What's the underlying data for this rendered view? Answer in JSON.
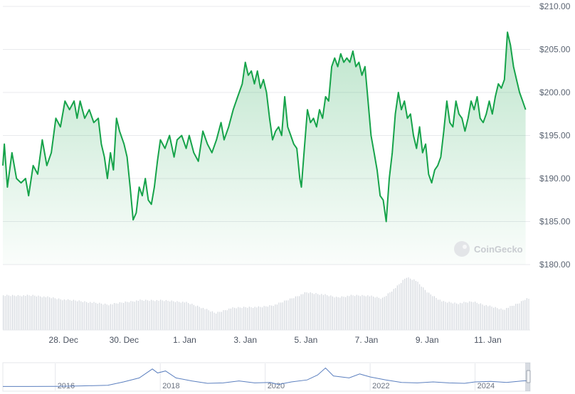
{
  "chart_data": {
    "type": "line",
    "title": "",
    "xlabel": "",
    "ylabel": "",
    "ylim": [
      180,
      210
    ],
    "yticks": [
      "$180.00",
      "$185.00",
      "$190.00",
      "$195.00",
      "$200.00",
      "$205.00",
      "$210.00"
    ],
    "xticks": [
      "28. Dec",
      "30. Dec",
      "1. Jan",
      "3. Jan",
      "5. Jan",
      "7. Jan",
      "9. Jan",
      "11. Jan"
    ],
    "x_range_days": [
      0,
      17.4
    ],
    "xtick_days": [
      2,
      4,
      6,
      8,
      10,
      12,
      14,
      16
    ],
    "grid": true,
    "line_color": "#16a34a",
    "fill_color": "#16a34a",
    "watermark": "CoinGecko",
    "price_points": [
      [
        0.0,
        191.5
      ],
      [
        0.05,
        194.0
      ],
      [
        0.15,
        189.0
      ],
      [
        0.3,
        193.0
      ],
      [
        0.45,
        190.0
      ],
      [
        0.6,
        189.5
      ],
      [
        0.75,
        190.0
      ],
      [
        0.85,
        188.0
      ],
      [
        1.0,
        191.5
      ],
      [
        1.15,
        190.5
      ],
      [
        1.3,
        194.5
      ],
      [
        1.45,
        191.5
      ],
      [
        1.6,
        193.0
      ],
      [
        1.75,
        197.0
      ],
      [
        1.9,
        196.0
      ],
      [
        2.05,
        199.0
      ],
      [
        2.2,
        198.0
      ],
      [
        2.35,
        199.0
      ],
      [
        2.45,
        197.0
      ],
      [
        2.55,
        199.0
      ],
      [
        2.7,
        197.0
      ],
      [
        2.85,
        198.0
      ],
      [
        3.0,
        196.5
      ],
      [
        3.15,
        197.0
      ],
      [
        3.25,
        194.0
      ],
      [
        3.35,
        192.5
      ],
      [
        3.45,
        190.0
      ],
      [
        3.55,
        193.0
      ],
      [
        3.65,
        191.0
      ],
      [
        3.75,
        197.0
      ],
      [
        3.85,
        195.5
      ],
      [
        4.0,
        194.0
      ],
      [
        4.1,
        192.5
      ],
      [
        4.2,
        189.0
      ],
      [
        4.3,
        185.2
      ],
      [
        4.4,
        186.0
      ],
      [
        4.5,
        189.0
      ],
      [
        4.6,
        188.0
      ],
      [
        4.7,
        190.0
      ],
      [
        4.8,
        187.5
      ],
      [
        4.9,
        187.0
      ],
      [
        5.0,
        189.0
      ],
      [
        5.1,
        192.0
      ],
      [
        5.2,
        194.5
      ],
      [
        5.35,
        193.5
      ],
      [
        5.5,
        195.0
      ],
      [
        5.65,
        192.5
      ],
      [
        5.75,
        194.5
      ],
      [
        5.9,
        195.0
      ],
      [
        6.05,
        193.5
      ],
      [
        6.15,
        195.0
      ],
      [
        6.3,
        193.0
      ],
      [
        6.45,
        192.0
      ],
      [
        6.6,
        195.5
      ],
      [
        6.75,
        194.0
      ],
      [
        6.9,
        193.0
      ],
      [
        7.05,
        194.5
      ],
      [
        7.2,
        196.5
      ],
      [
        7.3,
        194.5
      ],
      [
        7.45,
        196.0
      ],
      [
        7.6,
        198.0
      ],
      [
        7.75,
        199.5
      ],
      [
        7.9,
        201.0
      ],
      [
        8.0,
        203.5
      ],
      [
        8.1,
        202.0
      ],
      [
        8.2,
        202.5
      ],
      [
        8.3,
        201.0
      ],
      [
        8.4,
        202.5
      ],
      [
        8.5,
        200.5
      ],
      [
        8.6,
        201.5
      ],
      [
        8.7,
        200.0
      ],
      [
        8.8,
        197.0
      ],
      [
        8.9,
        194.5
      ],
      [
        9.0,
        195.5
      ],
      [
        9.1,
        196.0
      ],
      [
        9.2,
        195.0
      ],
      [
        9.3,
        199.5
      ],
      [
        9.4,
        196.0
      ],
      [
        9.5,
        195.0
      ],
      [
        9.6,
        194.0
      ],
      [
        9.7,
        193.5
      ],
      [
        9.8,
        190.0
      ],
      [
        9.85,
        189.0
      ],
      [
        9.95,
        193.5
      ],
      [
        10.05,
        198.0
      ],
      [
        10.15,
        196.5
      ],
      [
        10.25,
        197.0
      ],
      [
        10.35,
        196.0
      ],
      [
        10.45,
        198.0
      ],
      [
        10.55,
        197.0
      ],
      [
        10.65,
        199.5
      ],
      [
        10.75,
        199.0
      ],
      [
        10.85,
        203.0
      ],
      [
        10.95,
        204.0
      ],
      [
        11.05,
        203.0
      ],
      [
        11.15,
        204.5
      ],
      [
        11.25,
        203.5
      ],
      [
        11.35,
        204.0
      ],
      [
        11.45,
        203.5
      ],
      [
        11.55,
        204.8
      ],
      [
        11.65,
        203.0
      ],
      [
        11.75,
        203.5
      ],
      [
        11.85,
        202.0
      ],
      [
        11.95,
        203.0
      ],
      [
        12.05,
        199.0
      ],
      [
        12.15,
        195.0
      ],
      [
        12.25,
        193.0
      ],
      [
        12.35,
        191.0
      ],
      [
        12.45,
        188.0
      ],
      [
        12.55,
        187.5
      ],
      [
        12.65,
        185.0
      ],
      [
        12.75,
        190.0
      ],
      [
        12.85,
        193.0
      ],
      [
        12.95,
        197.5
      ],
      [
        13.05,
        200.0
      ],
      [
        13.15,
        198.0
      ],
      [
        13.25,
        199.0
      ],
      [
        13.35,
        197.0
      ],
      [
        13.45,
        197.5
      ],
      [
        13.55,
        195.0
      ],
      [
        13.65,
        193.5
      ],
      [
        13.75,
        196.0
      ],
      [
        13.85,
        193.0
      ],
      [
        13.95,
        194.0
      ],
      [
        14.05,
        190.5
      ],
      [
        14.15,
        189.5
      ],
      [
        14.25,
        191.0
      ],
      [
        14.35,
        191.5
      ],
      [
        14.45,
        192.5
      ],
      [
        14.55,
        195.5
      ],
      [
        14.65,
        199.0
      ],
      [
        14.75,
        196.5
      ],
      [
        14.85,
        196.0
      ],
      [
        14.95,
        199.0
      ],
      [
        15.05,
        197.5
      ],
      [
        15.15,
        197.0
      ],
      [
        15.25,
        195.5
      ],
      [
        15.35,
        197.0
      ],
      [
        15.45,
        199.0
      ],
      [
        15.55,
        198.0
      ],
      [
        15.65,
        199.5
      ],
      [
        15.75,
        197.0
      ],
      [
        15.85,
        196.5
      ],
      [
        15.95,
        197.5
      ],
      [
        16.05,
        199.0
      ],
      [
        16.15,
        197.5
      ],
      [
        16.25,
        199.5
      ],
      [
        16.35,
        201.0
      ],
      [
        16.45,
        200.5
      ],
      [
        16.55,
        201.5
      ],
      [
        16.65,
        207.0
      ],
      [
        16.75,
        205.5
      ],
      [
        16.85,
        203.0
      ],
      [
        16.95,
        201.5
      ],
      [
        17.05,
        200.0
      ],
      [
        17.15,
        199.0
      ],
      [
        17.25,
        198.0
      ]
    ],
    "volume_points": [
      [
        0.0,
        0.55
      ],
      [
        1.0,
        0.55
      ],
      [
        1.5,
        0.52
      ],
      [
        2.0,
        0.48
      ],
      [
        2.5,
        0.46
      ],
      [
        3.0,
        0.43
      ],
      [
        3.5,
        0.4
      ],
      [
        4.0,
        0.44
      ],
      [
        4.5,
        0.47
      ],
      [
        5.0,
        0.47
      ],
      [
        5.5,
        0.46
      ],
      [
        6.0,
        0.44
      ],
      [
        6.5,
        0.36
      ],
      [
        7.0,
        0.26
      ],
      [
        7.5,
        0.34
      ],
      [
        8.0,
        0.36
      ],
      [
        8.5,
        0.36
      ],
      [
        9.0,
        0.4
      ],
      [
        9.5,
        0.5
      ],
      [
        10.0,
        0.6
      ],
      [
        10.5,
        0.57
      ],
      [
        11.0,
        0.52
      ],
      [
        11.5,
        0.55
      ],
      [
        12.0,
        0.55
      ],
      [
        12.5,
        0.5
      ],
      [
        13.0,
        0.7
      ],
      [
        13.3,
        0.85
      ],
      [
        13.6,
        0.8
      ],
      [
        14.0,
        0.6
      ],
      [
        14.5,
        0.45
      ],
      [
        15.0,
        0.42
      ],
      [
        15.5,
        0.45
      ],
      [
        16.0,
        0.38
      ],
      [
        16.5,
        0.32
      ],
      [
        17.0,
        0.42
      ],
      [
        17.25,
        0.5
      ]
    ],
    "navigator": {
      "xticks": [
        "2016",
        "2018",
        "2020",
        "2022",
        "2024"
      ],
      "xtick_years": [
        2016,
        2018,
        2020,
        2022,
        2024
      ],
      "year_range": [
        2015.0,
        2025.05
      ],
      "series": [
        [
          2015.0,
          0.02
        ],
        [
          2015.5,
          0.02
        ],
        [
          2016.0,
          0.03
        ],
        [
          2016.5,
          0.05
        ],
        [
          2017.0,
          0.08
        ],
        [
          2017.3,
          0.25
        ],
        [
          2017.6,
          0.45
        ],
        [
          2017.85,
          0.9
        ],
        [
          2017.95,
          0.7
        ],
        [
          2018.1,
          0.8
        ],
        [
          2018.3,
          0.45
        ],
        [
          2018.6,
          0.3
        ],
        [
          2018.9,
          0.18
        ],
        [
          2019.2,
          0.2
        ],
        [
          2019.5,
          0.3
        ],
        [
          2019.8,
          0.2
        ],
        [
          2020.1,
          0.22
        ],
        [
          2020.25,
          0.12
        ],
        [
          2020.5,
          0.25
        ],
        [
          2020.8,
          0.35
        ],
        [
          2021.0,
          0.6
        ],
        [
          2021.15,
          0.95
        ],
        [
          2021.3,
          0.55
        ],
        [
          2021.6,
          0.45
        ],
        [
          2021.8,
          0.65
        ],
        [
          2022.0,
          0.5
        ],
        [
          2022.3,
          0.35
        ],
        [
          2022.6,
          0.22
        ],
        [
          2022.9,
          0.2
        ],
        [
          2023.2,
          0.25
        ],
        [
          2023.5,
          0.2
        ],
        [
          2023.8,
          0.18
        ],
        [
          2024.0,
          0.25
        ],
        [
          2024.3,
          0.28
        ],
        [
          2024.6,
          0.22
        ],
        [
          2024.9,
          0.3
        ],
        [
          2025.05,
          0.32
        ]
      ]
    }
  }
}
